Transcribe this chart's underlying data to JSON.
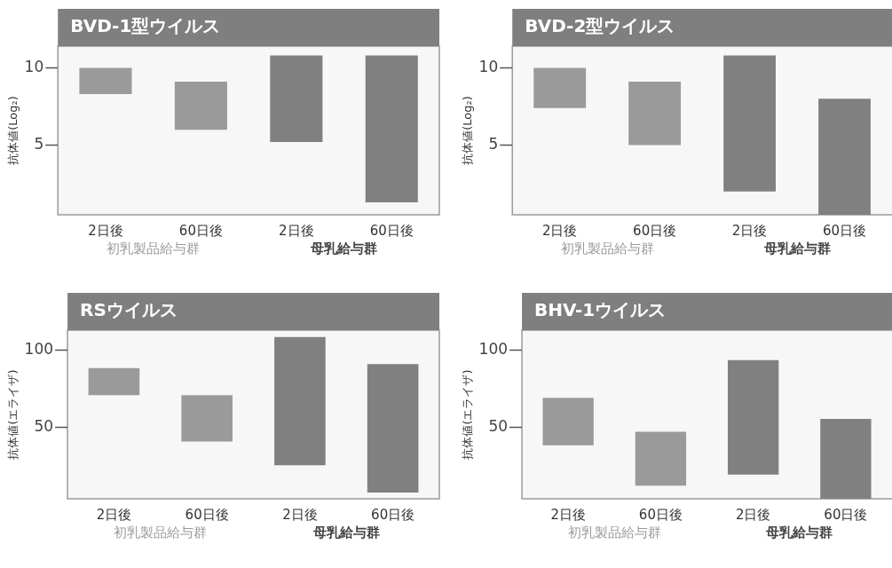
{
  "chart_data": [
    {
      "type": "bar",
      "title": "BVD-1型ウイルス",
      "ylabel": "抗体値(Log₂)",
      "categories": [
        "2日後",
        "60日後",
        "2日後",
        "60日後"
      ],
      "base": [
        8.3,
        6,
        5.2,
        1.3
      ],
      "values": [
        1.7,
        3.1,
        5.6,
        9.5
      ],
      "colors": [
        "#9a9a9a",
        "#9a9a9a",
        "#808080",
        "#808080"
      ],
      "ylim": [
        0.5,
        11.4
      ],
      "yticks": [
        5,
        10
      ],
      "grid": false,
      "legend": false,
      "annotations": [
        "初乳製品給与群",
        "母乳給与群"
      ]
    },
    {
      "type": "bar",
      "title": "BVD-2型ウイルス",
      "ylabel": "抗体値(Log₂)",
      "categories": [
        "2日後",
        "60日後",
        "2日後",
        "60日後"
      ],
      "base": [
        7.4,
        5,
        2,
        0.5
      ],
      "values": [
        2.6,
        4.1,
        8.8,
        7.5
      ],
      "colors": [
        "#9a9a9a",
        "#9a9a9a",
        "#808080",
        "#808080"
      ],
      "ylim": [
        0.5,
        11.4
      ],
      "yticks": [
        5,
        10
      ],
      "grid": false,
      "legend": false,
      "annotations": [
        "初乳製品給与群",
        "母乳給与群"
      ]
    },
    {
      "type": "bar",
      "title": "RSウイルス",
      "ylabel": "抗体値(エライザ)",
      "categories": [
        "2日後",
        "60日後",
        "2日後",
        "60日後"
      ],
      "base": [
        71,
        41,
        25.6,
        8
      ],
      "values": [
        17.5,
        30,
        83,
        83
      ],
      "colors": [
        "#9a9a9a",
        "#9a9a9a",
        "#808080",
        "#808080"
      ],
      "ylim": [
        4,
        113
      ],
      "yticks": [
        50,
        100
      ],
      "grid": false,
      "legend": false,
      "annotations": [
        "初乳製品給与群",
        "母乳給与群"
      ]
    },
    {
      "type": "bar",
      "title": "BHV-1ウイルス",
      "ylabel": "抗体値(エライザ)",
      "categories": [
        "2日後",
        "60日後",
        "2日後",
        "60日後"
      ],
      "base": [
        38.5,
        12.5,
        19.6,
        4
      ],
      "values": [
        30.8,
        34.8,
        74,
        51.6
      ],
      "colors": [
        "#9a9a9a",
        "#9a9a9a",
        "#808080",
        "#808080"
      ],
      "ylim": [
        4,
        113
      ],
      "yticks": [
        50,
        100
      ],
      "grid": false,
      "legend": false,
      "annotations": [
        "初乳製品給与群",
        "母乳給与群"
      ]
    }
  ]
}
